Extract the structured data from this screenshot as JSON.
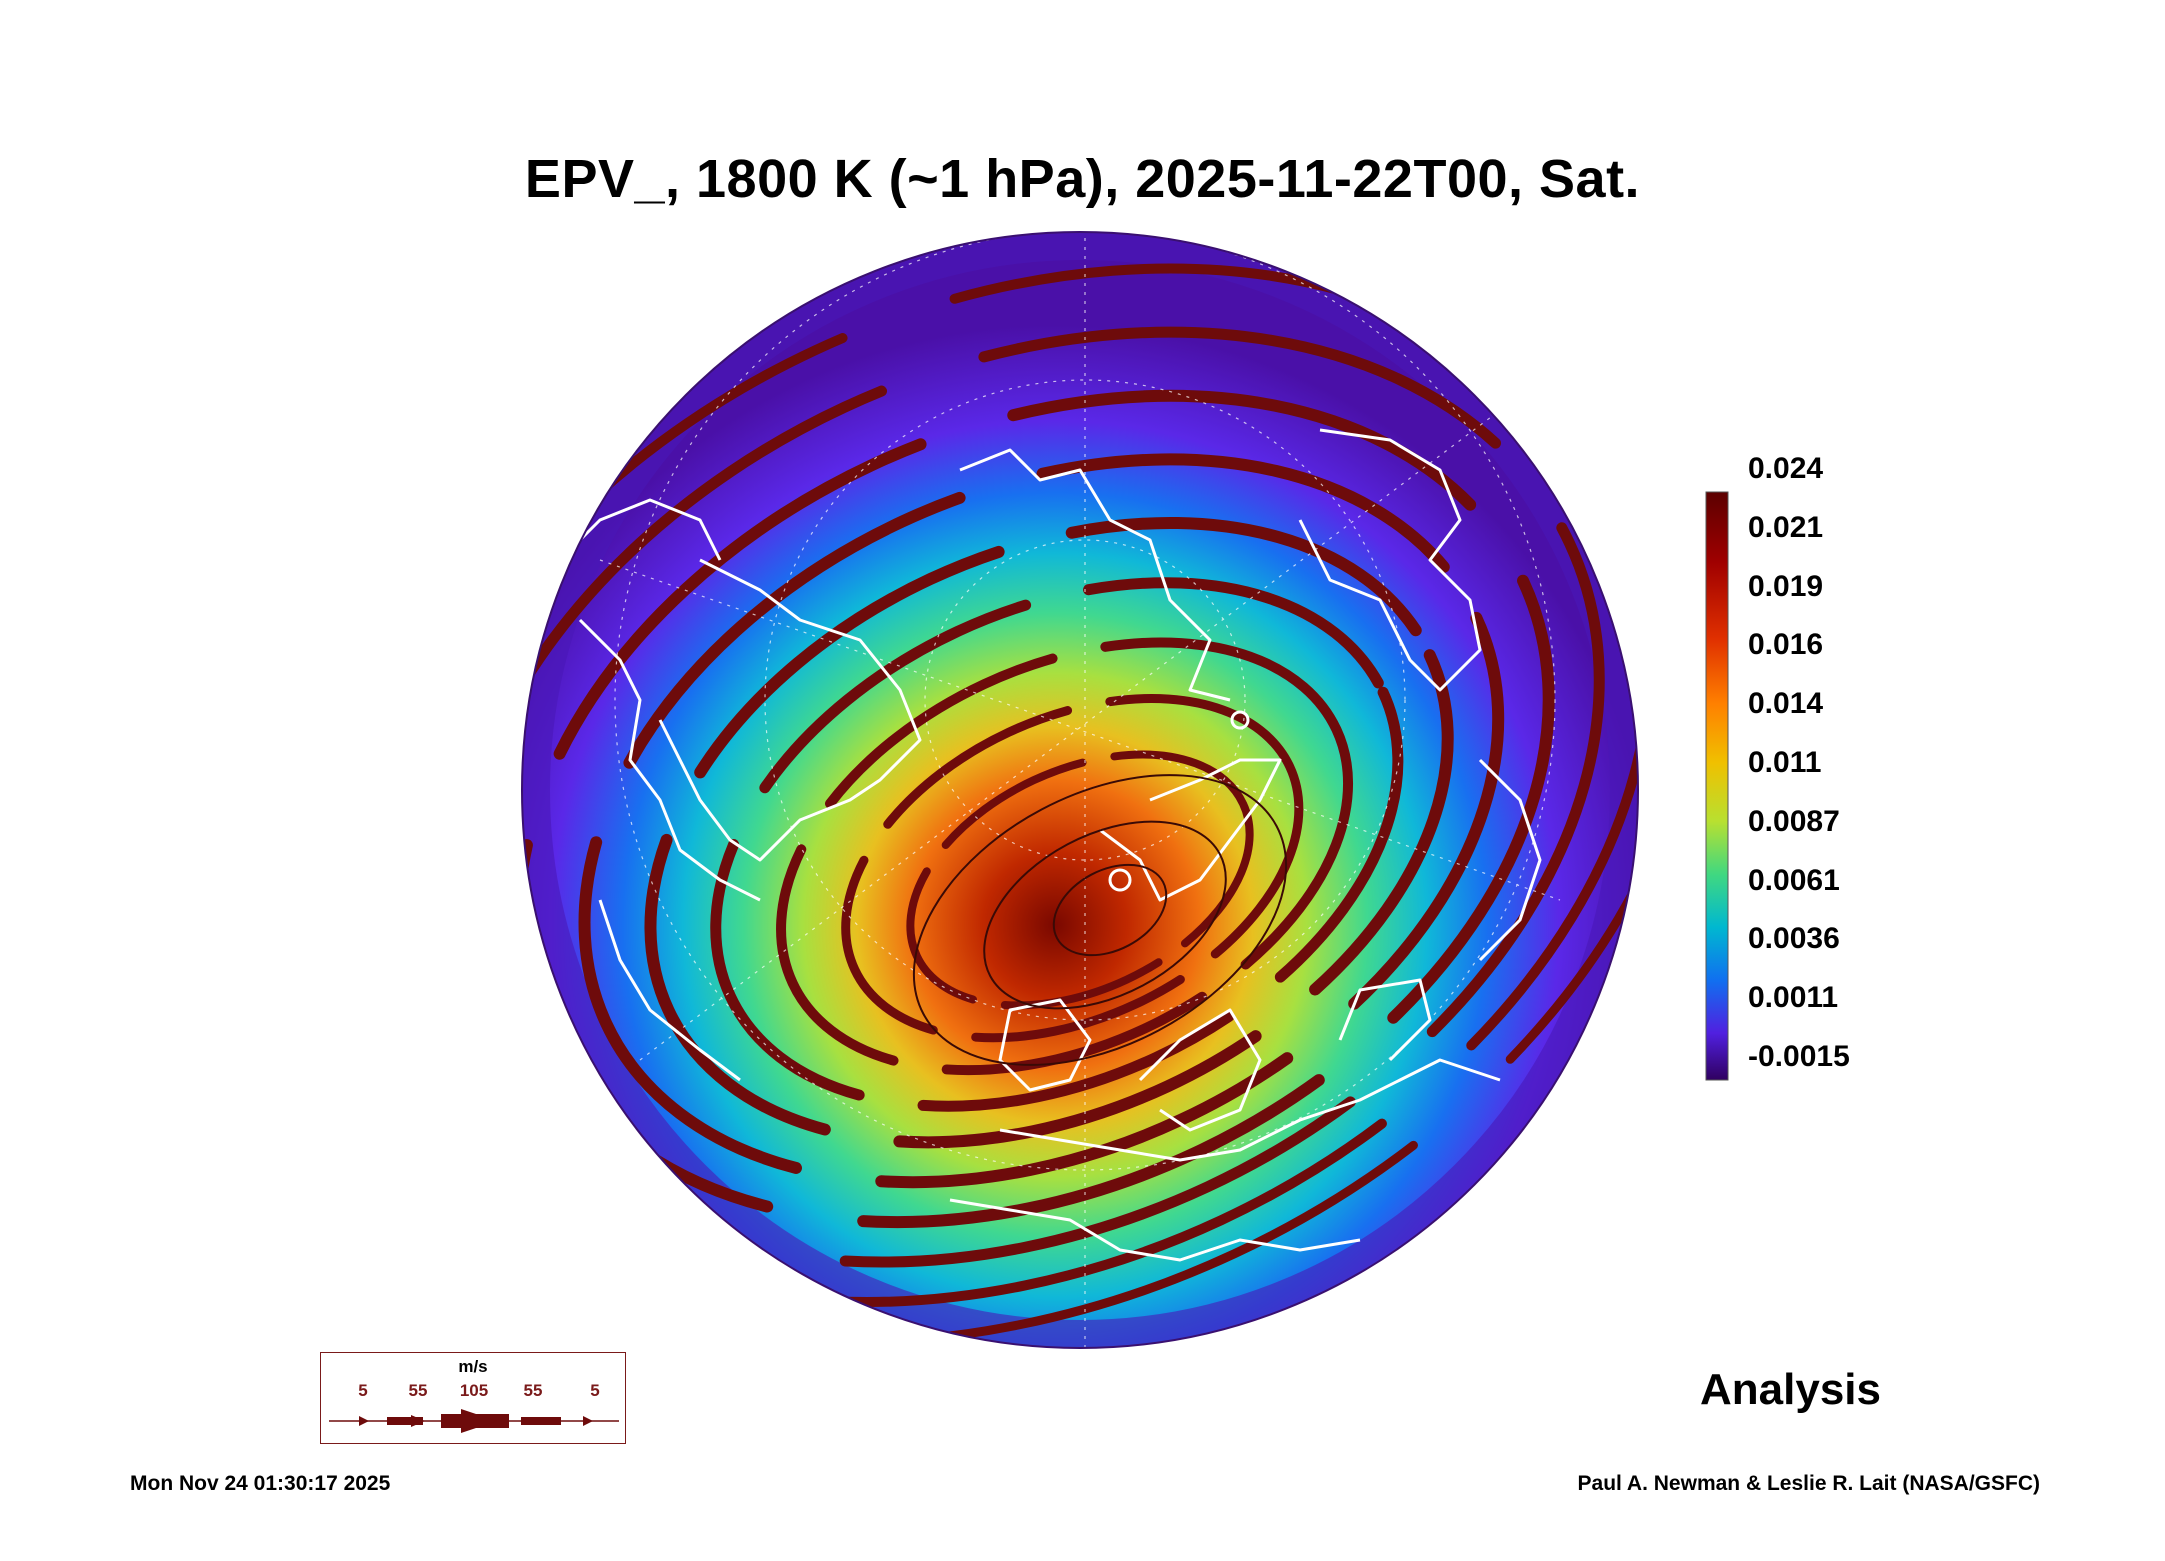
{
  "title": "EPV_, 1800 K (~1 hPa), 2025-11-22T00, Sat.",
  "colorbar": {
    "labels": [
      "0.024",
      "0.021",
      "0.019",
      "0.016",
      "0.014",
      "0.011",
      "0.0087",
      "0.0061",
      "0.0036",
      "0.0011",
      "-0.0015"
    ],
    "colors": [
      "#5c0000",
      "#a00000",
      "#e03000",
      "#ff8000",
      "#f0c000",
      "#b8e030",
      "#40d880",
      "#00b8d0",
      "#1070f0",
      "#5020e0",
      "#300060"
    ]
  },
  "wind_legend": {
    "unit": "m/s",
    "speeds": [
      "5",
      "55",
      "105",
      "55",
      "5"
    ],
    "color": "#6e0b0b"
  },
  "panel_label": "Analysis",
  "timestamp": "Mon Nov 24 01:30:17 2025",
  "credit": "Paul A. Newman & Leslie R. Lait (NASA/GSFC)",
  "colors": {
    "streamline": "#6e0b0b",
    "coastline": "#ffffff",
    "vortex_core": "#7a1a10"
  }
}
